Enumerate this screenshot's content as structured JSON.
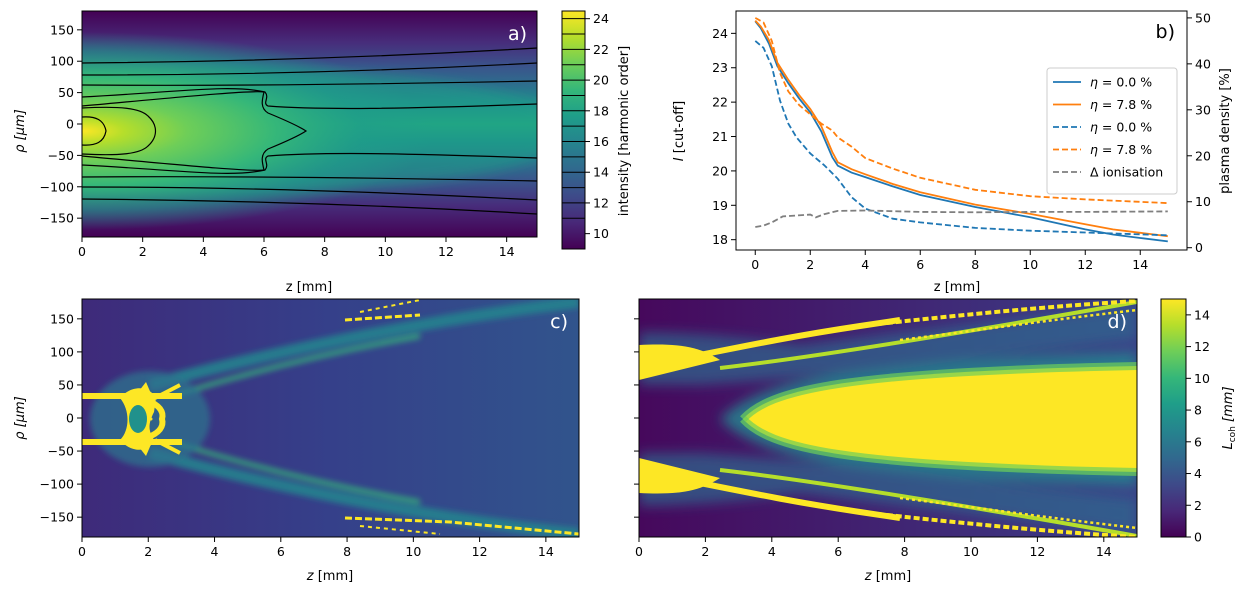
{
  "chart_data": [
    {
      "panel": "a)",
      "type": "heatmap",
      "xlabel": "z [mm]",
      "ylabel": "ρ [μm]",
      "xlim": [
        0,
        15
      ],
      "ylim": [
        -180,
        180
      ],
      "xticks": [
        0,
        2,
        4,
        6,
        8,
        10,
        12,
        14
      ],
      "yticks": [
        150,
        100,
        50,
        0,
        -50,
        -100,
        -150
      ],
      "colorbar": {
        "label": "intensity [harmonic order]",
        "range": [
          9,
          24.5
        ],
        "ticks": [
          10,
          12,
          14,
          16,
          18,
          20,
          22,
          24
        ]
      },
      "contour_levels": [
        11,
        12,
        14,
        16,
        18,
        20,
        24
      ],
      "label_color": "#ffffff"
    },
    {
      "panel": "b)",
      "type": "line",
      "xlabel": "z [mm]",
      "ylabel": "I [cut-off]",
      "ylabel_right": "plasma density [%]",
      "xlim": [
        -0.7,
        15.7
      ],
      "ylim": [
        17.7,
        24.65
      ],
      "ylim_right": [
        -0.5,
        51.5
      ],
      "xticks": [
        0,
        2,
        4,
        6,
        8,
        10,
        12,
        14
      ],
      "yticks": [
        18,
        19,
        20,
        21,
        22,
        23,
        24
      ],
      "yticks_right": [
        0,
        10,
        20,
        30,
        40,
        50
      ],
      "series": [
        {
          "name": "η = 0.0 %",
          "axis": "left",
          "color": "#1f77b4",
          "style": "solid",
          "x": [
            0,
            0.2,
            0.5,
            0.8,
            1.2,
            1.6,
            2.0,
            2.4,
            2.8,
            3.0,
            3.5,
            4,
            5,
            6,
            8,
            10,
            12,
            13,
            14,
            15
          ],
          "y": [
            24.35,
            24.15,
            23.7,
            23.05,
            22.55,
            22.1,
            21.7,
            21.15,
            20.4,
            20.15,
            19.95,
            19.82,
            19.55,
            19.3,
            18.95,
            18.65,
            18.3,
            18.15,
            18.05,
            17.95
          ]
        },
        {
          "name": "η = 7.8 %",
          "axis": "left",
          "color": "#ff7f0e",
          "style": "solid",
          "x": [
            0,
            0.2,
            0.5,
            0.8,
            1.2,
            1.6,
            2.0,
            2.4,
            2.8,
            3.0,
            3.5,
            4,
            5,
            6,
            8,
            10,
            12,
            13,
            14,
            15
          ],
          "y": [
            24.37,
            24.2,
            23.8,
            23.15,
            22.65,
            22.2,
            21.8,
            21.3,
            20.55,
            20.25,
            20.05,
            19.9,
            19.62,
            19.38,
            19.02,
            18.75,
            18.45,
            18.3,
            18.2,
            18.1
          ]
        },
        {
          "name": "η = 0.0 %",
          "axis": "right",
          "color": "#1f77b4",
          "style": "dashed",
          "x": [
            0,
            0.3,
            0.6,
            0.9,
            1.2,
            1.5,
            2.0,
            2.5,
            3.0,
            3.5,
            4,
            5,
            6,
            8,
            10,
            12,
            15
          ],
          "y": [
            45,
            43.5,
            39.5,
            32,
            27,
            24,
            20.5,
            18,
            15,
            11,
            8.5,
            6.3,
            5.5,
            4.3,
            3.7,
            3.3,
            2.7
          ]
        },
        {
          "name": "η = 7.8 %",
          "axis": "right",
          "color": "#ff7f0e",
          "style": "dashed",
          "x": [
            0,
            0.3,
            0.6,
            0.9,
            1.2,
            1.6,
            2.0,
            2.4,
            2.8,
            3.0,
            3.5,
            4,
            5,
            6,
            8,
            10,
            12,
            15
          ],
          "y": [
            50,
            49,
            45,
            38,
            34,
            31,
            29,
            27,
            25.5,
            24,
            22,
            19.5,
            17.2,
            15.2,
            12.6,
            11.2,
            10.5,
            9.7
          ]
        },
        {
          "name": "Δ ionisation",
          "axis": "right",
          "color": "#7f7f7f",
          "style": "dashed",
          "x": [
            0,
            0.3,
            0.6,
            1.0,
            1.5,
            2.0,
            2.2,
            2.5,
            3.0,
            4,
            6,
            8,
            10,
            12,
            15
          ],
          "y": [
            4.5,
            4.8,
            5.5,
            6.8,
            7.0,
            7.2,
            6.6,
            7.3,
            8.0,
            8.1,
            7.8,
            7.7,
            7.8,
            7.8,
            7.9
          ]
        }
      ]
    },
    {
      "panel": "c)",
      "type": "heatmap",
      "xlabel": "z [mm]",
      "ylabel": "ρ [μm]",
      "xlim": [
        0,
        15
      ],
      "ylim": [
        -180,
        180
      ],
      "xticks": [
        0,
        2,
        4,
        6,
        8,
        10,
        12,
        14
      ],
      "yticks": [
        150,
        100,
        50,
        0,
        -50,
        -100,
        -150
      ],
      "label_color": "#ffffff"
    },
    {
      "panel": "d)",
      "type": "heatmap",
      "xlabel": "z [mm]",
      "xlim": [
        0,
        15
      ],
      "ylim": [
        -180,
        180
      ],
      "xticks": [
        0,
        2,
        4,
        6,
        8,
        10,
        12,
        14
      ],
      "colorbar": {
        "label": "L_coh [mm]",
        "range": [
          0,
          15
        ],
        "ticks": [
          0,
          2,
          4,
          6,
          8,
          10,
          12,
          14
        ]
      },
      "label_color": "#ffffff"
    }
  ],
  "labels": {
    "a_panel": "a)",
    "a_xlabel": "z [mm]",
    "a_ylabel_sym": "ρ",
    "a_ylabel_unit": "[μm]",
    "a_cbar_label": "intensity [harmonic order]",
    "b_panel": "b)",
    "b_xlabel": "z [mm]",
    "b_ylabel_sym": "I",
    "b_ylabel_unit": "[cut-off]",
    "b_ylabel_right": "plasma density [%]",
    "c_panel": "c)",
    "c_xlabel_sym": "z",
    "c_xlabel_unit": "[mm]",
    "c_ylabel_sym": "ρ",
    "c_ylabel_unit": "[μm]",
    "d_panel": "d)",
    "d_xlabel_sym": "z",
    "d_xlabel_unit": "[mm]",
    "d_cbar_sym": "L",
    "d_cbar_sub": "coh",
    "d_cbar_unit": "[mm]"
  },
  "legend": [
    {
      "label_sym": "η",
      "label_rest": " = 0.0 %",
      "color": "#1f77b4",
      "style": "solid"
    },
    {
      "label_sym": "η",
      "label_rest": " = 7.8 %",
      "color": "#ff7f0e",
      "style": "solid"
    },
    {
      "label_sym": "η",
      "label_rest": " = 0.0 %",
      "color": "#1f77b4",
      "style": "dashed"
    },
    {
      "label_sym": "η",
      "label_rest": " = 7.8 %",
      "color": "#ff7f0e",
      "style": "dashed"
    },
    {
      "label_sym": "Δ",
      "label_rest": " ionisation",
      "color": "#7f7f7f",
      "style": "dashed"
    }
  ],
  "colors": {
    "viridis": [
      "#440154",
      "#482878",
      "#3e4a89",
      "#31688e",
      "#26828e",
      "#1f9e89",
      "#35b779",
      "#6ece58",
      "#b5de2b",
      "#fde725"
    ],
    "blue": "#1f77b4",
    "orange": "#ff7f0e",
    "gray": "#7f7f7f"
  }
}
